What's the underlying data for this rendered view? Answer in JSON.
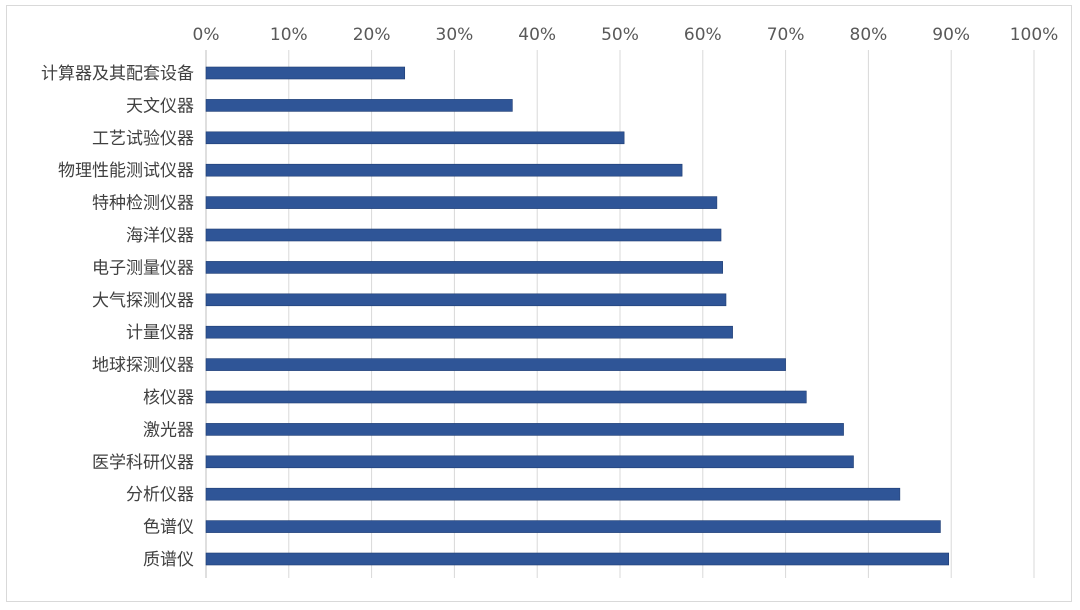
{
  "chart_data": {
    "type": "bar",
    "orientation": "horizontal",
    "categories": [
      "计算器及其配套设备",
      "天文仪器",
      "工艺试验仪器",
      "物理性能测试仪器",
      "特种检测仪器",
      "海洋仪器",
      "电子测量仪器",
      "大气探测仪器",
      "计量仪器",
      "地球探测仪器",
      "核仪器",
      "激光器",
      "医学科研仪器",
      "分析仪器",
      "色谱仪",
      "质谱仪"
    ],
    "values": [
      0.24,
      0.37,
      0.505,
      0.575,
      0.617,
      0.622,
      0.624,
      0.628,
      0.636,
      0.7,
      0.725,
      0.77,
      0.782,
      0.838,
      0.887,
      0.897
    ],
    "xlim": [
      0,
      1
    ],
    "x_ticks": [
      "0%",
      "10%",
      "20%",
      "30%",
      "40%",
      "50%",
      "60%",
      "70%",
      "80%",
      "90%",
      "100%"
    ],
    "x_axis_position": "top",
    "grid": true,
    "legend": "none",
    "bar_color": "#2f5597"
  }
}
